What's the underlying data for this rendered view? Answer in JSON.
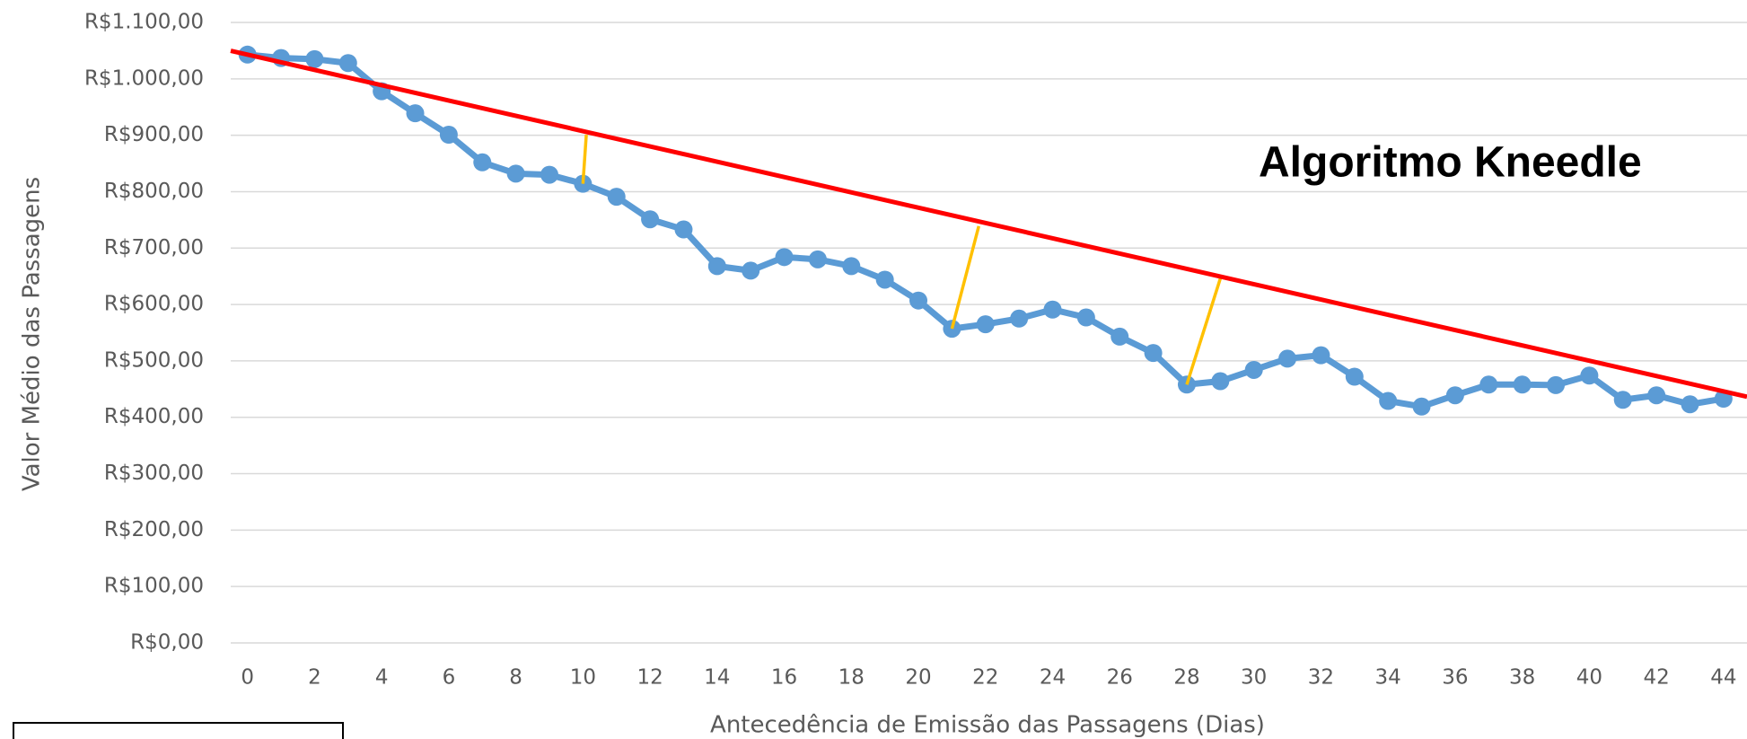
{
  "chart_data": {
    "type": "line",
    "annotation": "Algoritmo Kneedle",
    "x_label": "Antecedência de Emissão das Passagens (Dias)",
    "y_label": "Valor Médio das Passagens",
    "x": [
      0,
      1,
      2,
      3,
      4,
      5,
      6,
      7,
      8,
      9,
      10,
      11,
      12,
      13,
      14,
      15,
      16,
      17,
      18,
      19,
      20,
      21,
      22,
      23,
      24,
      25,
      26,
      27,
      28,
      29,
      30,
      31,
      32,
      33,
      34,
      35,
      36,
      37,
      38,
      39,
      40,
      41,
      42,
      43,
      44
    ],
    "series": [
      {
        "color": "#5b9bd5",
        "values": [
          1043,
          1037,
          1035,
          1028,
          978,
          939,
          901,
          852,
          832,
          830,
          814,
          791,
          751,
          733,
          668,
          660,
          684,
          680,
          668,
          644,
          607,
          557,
          565,
          575,
          591,
          577,
          543,
          514,
          458,
          464,
          484,
          504,
          510,
          472,
          429,
          419,
          439,
          458,
          458,
          457,
          474,
          431,
          439,
          423,
          433
        ]
      }
    ],
    "trendline": {
      "color": "#ff0000",
      "x": [
        0,
        44
      ],
      "values": [
        1043,
        446
      ]
    },
    "distance_lines": {
      "color": "#ffc000",
      "segments": [
        {
          "x": [
            10,
            10.1
          ],
          "values": [
            814,
            901
          ]
        },
        {
          "x": [
            21,
            21.8
          ],
          "values": [
            557,
            739
          ]
        },
        {
          "x": [
            28,
            29
          ],
          "values": [
            458,
            646
          ]
        }
      ]
    },
    "xlim": [
      -0.5,
      44.7
    ],
    "ylim": [
      0,
      1100
    ],
    "xticks": [
      0,
      2,
      4,
      6,
      8,
      10,
      12,
      14,
      16,
      18,
      20,
      22,
      24,
      26,
      28,
      30,
      32,
      34,
      36,
      38,
      40,
      42,
      44
    ],
    "yticks": [
      {
        "value": 0,
        "label": "R$0,00"
      },
      {
        "value": 100,
        "label": "R$100,00"
      },
      {
        "value": 200,
        "label": "R$200,00"
      },
      {
        "value": 300,
        "label": "R$300,00"
      },
      {
        "value": 400,
        "label": "R$400,00"
      },
      {
        "value": 500,
        "label": "R$500,00"
      },
      {
        "value": 600,
        "label": "R$600,00"
      },
      {
        "value": 700,
        "label": "R$700,00"
      },
      {
        "value": 800,
        "label": "R$800,00"
      },
      {
        "value": 900,
        "label": "R$900,00"
      },
      {
        "value": 1000,
        "label": "R$1.000,00"
      },
      {
        "value": 1100,
        "label": "R$1.100,00"
      }
    ],
    "grid": true
  }
}
